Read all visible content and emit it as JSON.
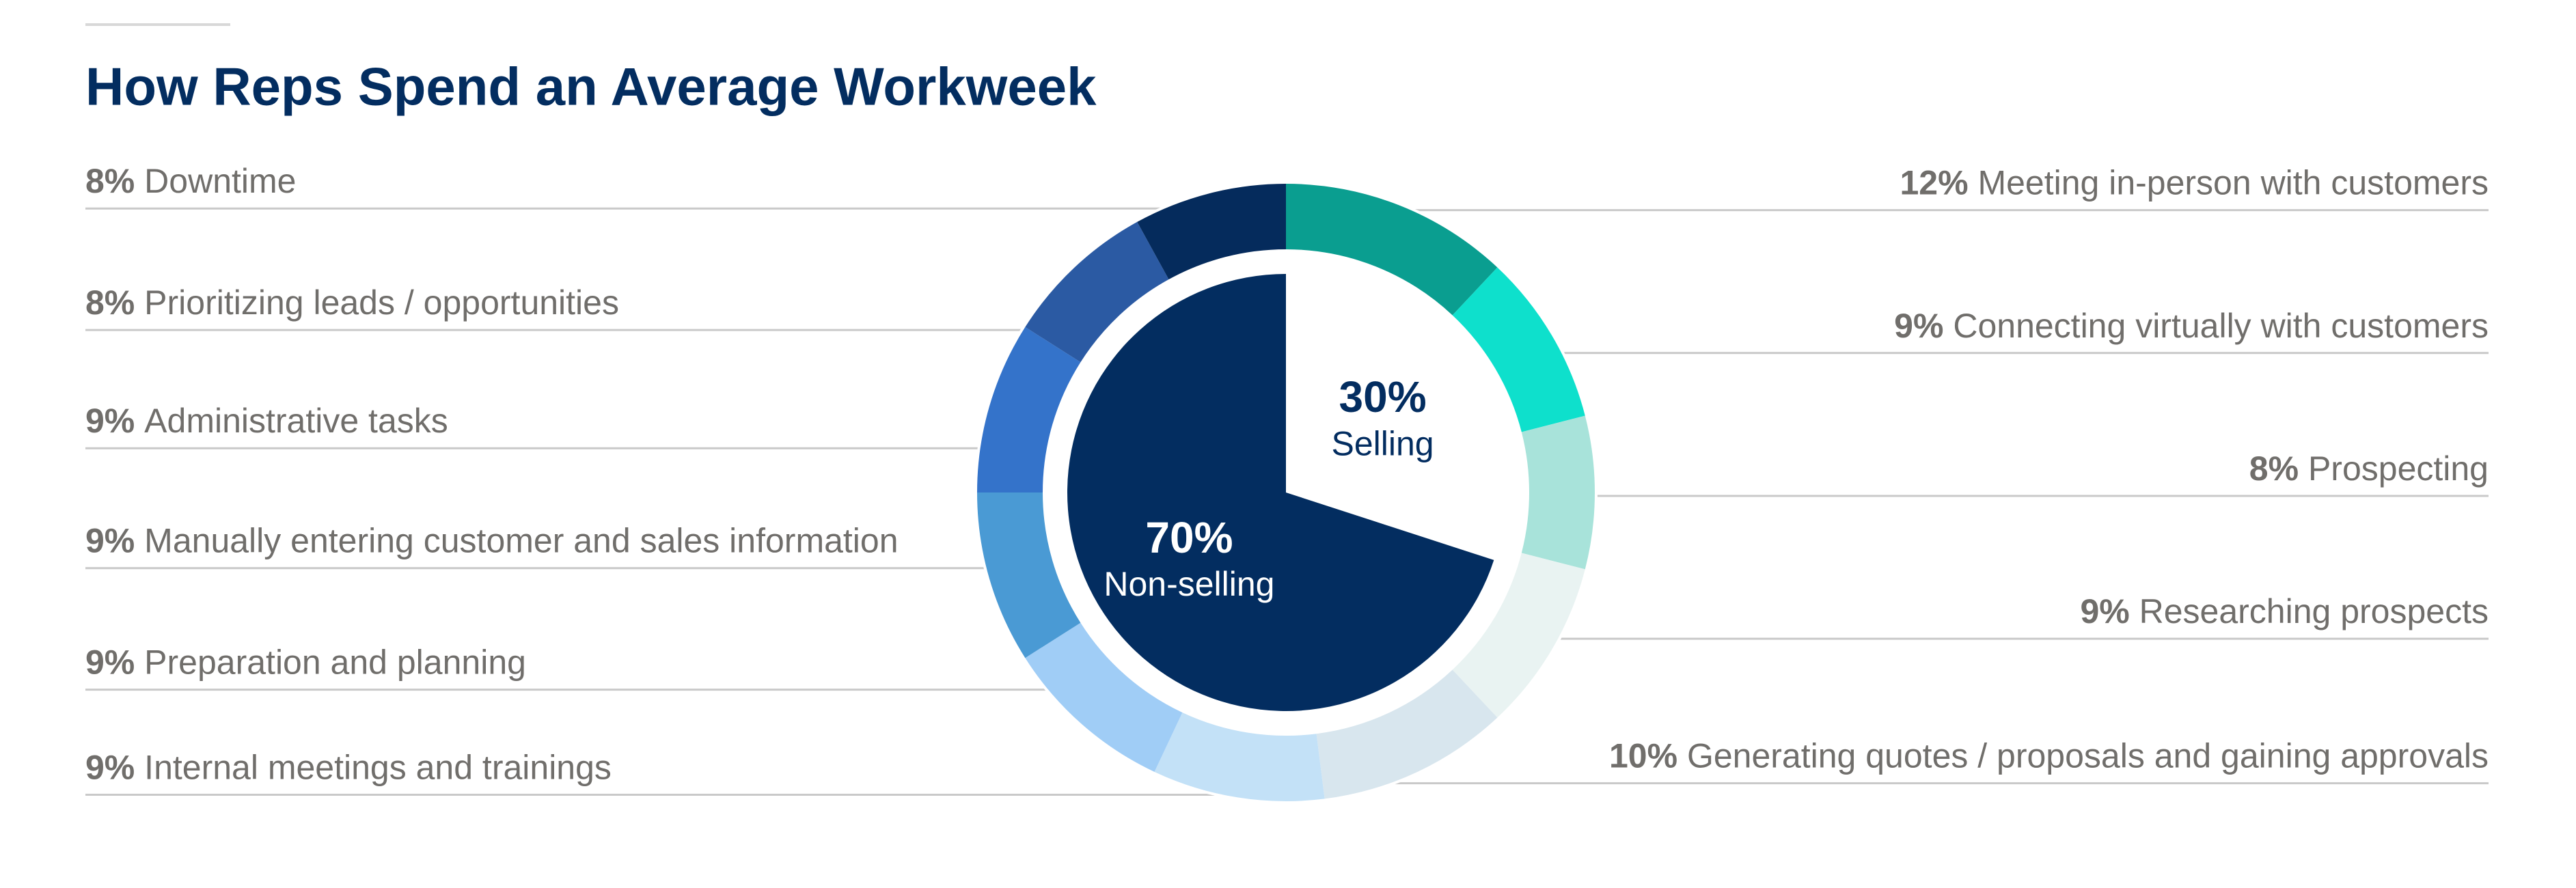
{
  "chart_data": {
    "type": "donut",
    "title": "How Reps Spend an Average Workweek",
    "inner": {
      "categories": [
        "Selling",
        "Non-selling"
      ],
      "values": [
        30,
        70
      ],
      "value_labels": [
        "30%",
        "70%"
      ],
      "colors": [
        "#ffffff",
        "#032d60"
      ]
    },
    "ring": {
      "categories": [
        "Meeting in-person with customers",
        "Connecting virtually with customers",
        "Prospecting",
        "Researching prospects",
        "Generating quotes / proposals and gaining approvals",
        "Internal meetings and trainings",
        "Preparation and planning",
        "Manually entering customer and sales information",
        "Administrative tasks",
        "Prioritizing leads / opportunities",
        "Downtime"
      ],
      "values": [
        12,
        9,
        8,
        9,
        10,
        9,
        9,
        9,
        9,
        8,
        8
      ],
      "value_labels": [
        "12%",
        "9%",
        "8%",
        "9%",
        "10%",
        "9%",
        "9%",
        "9%",
        "9%",
        "8%",
        "8%"
      ],
      "colors": [
        "#0a9e90",
        "#0ee0cc",
        "#a8e3da",
        "#e9f3f2",
        "#d8e6ee",
        "#c3e1f7",
        "#a0cdf6",
        "#4a9ad4",
        "#3473ca",
        "#2b5aa3",
        "#052b5c"
      ]
    }
  }
}
